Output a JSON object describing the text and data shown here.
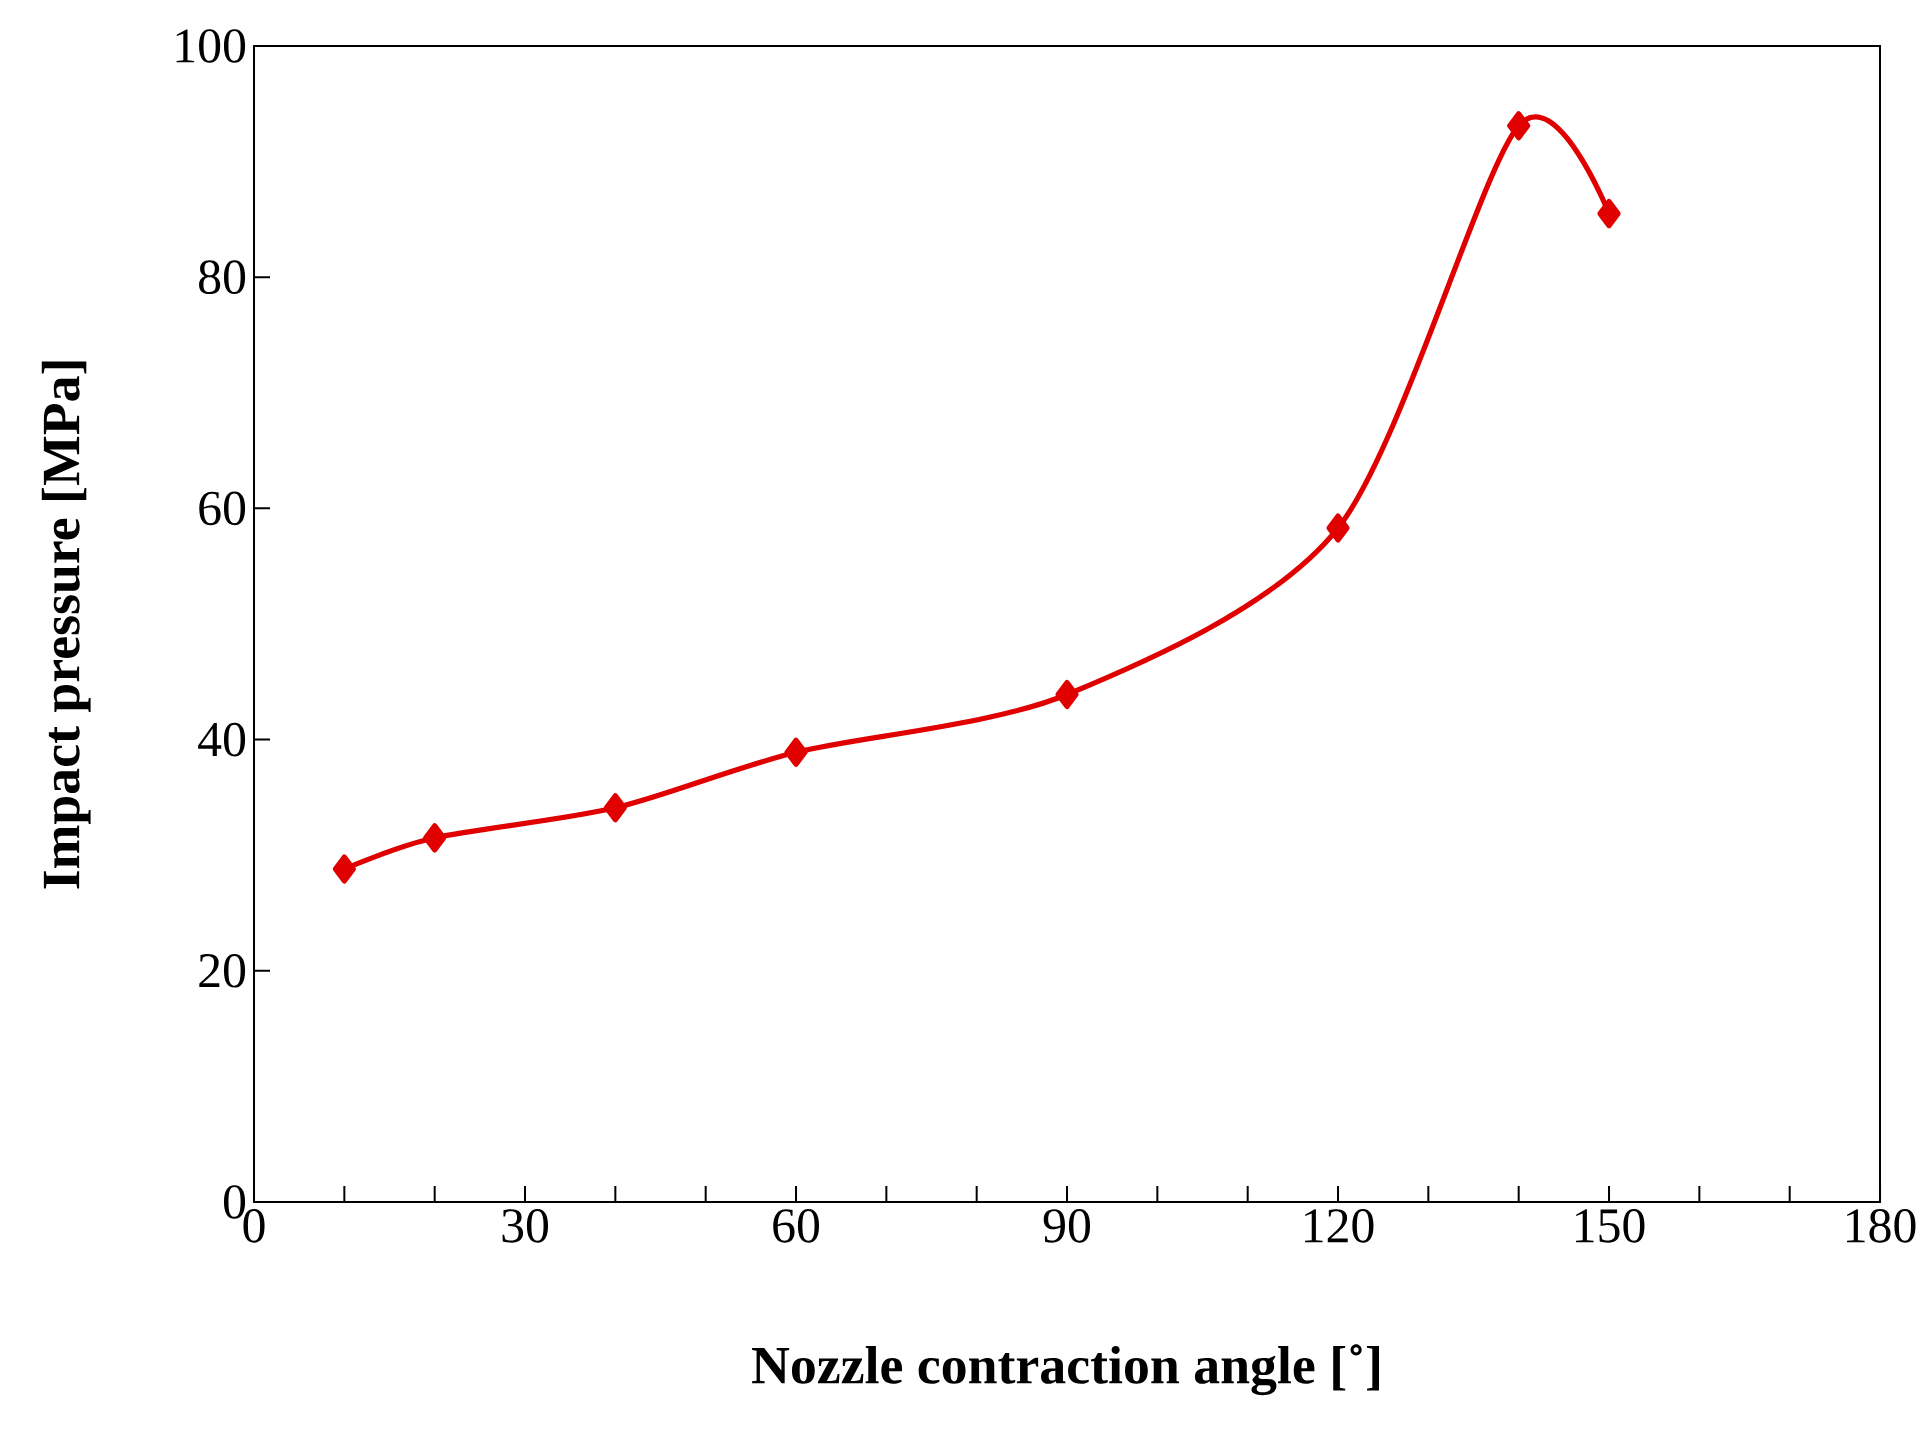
{
  "chart_data": {
    "type": "line",
    "xlabel": "Nozzle contraction angle [˚]",
    "ylabel": "Impact pressure [MPa]",
    "x": [
      10,
      20,
      40,
      60,
      90,
      120,
      140,
      150
    ],
    "series": [
      {
        "color": "#e00000",
        "values": [
          28.8,
          31.5,
          34.1,
          38.9,
          43.9,
          58.3,
          93.1,
          85.5
        ]
      }
    ],
    "xlim": [
      0,
      180
    ],
    "xticks": [
      0,
      {
        "value": 10,
        "label": null
      },
      {
        "value": 20,
        "label": null
      },
      30,
      {
        "value": 40,
        "label": null
      },
      {
        "value": 50,
        "label": null
      },
      60,
      {
        "value": 70,
        "label": null
      },
      {
        "value": 80,
        "label": null
      },
      90,
      {
        "value": 100,
        "label": null
      },
      {
        "value": 110,
        "label": null
      },
      120,
      {
        "value": 130,
        "label": null
      },
      {
        "value": 140,
        "label": null
      },
      150,
      {
        "value": 160,
        "label": null
      },
      {
        "value": 170,
        "label": null
      },
      180
    ],
    "ylim": [
      0,
      100
    ],
    "yticks": [
      0,
      20,
      40,
      60,
      80,
      100
    ],
    "marker": "diamond",
    "line_style": "solid"
  }
}
